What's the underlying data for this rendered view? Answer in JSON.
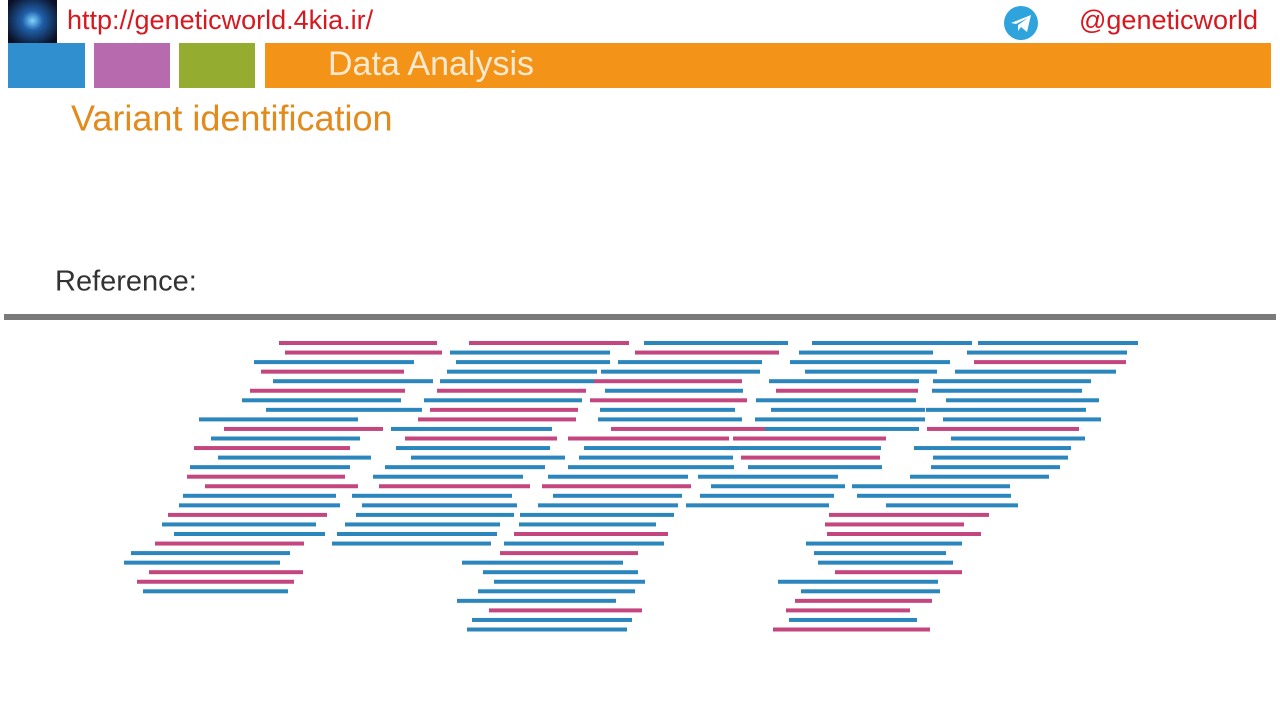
{
  "header": {
    "url": "http://geneticworld.4kia.ir/",
    "handle": "@geneticworld"
  },
  "section": "Data Analysis",
  "title": "Variant identification",
  "reference_label": "Reference:"
}
